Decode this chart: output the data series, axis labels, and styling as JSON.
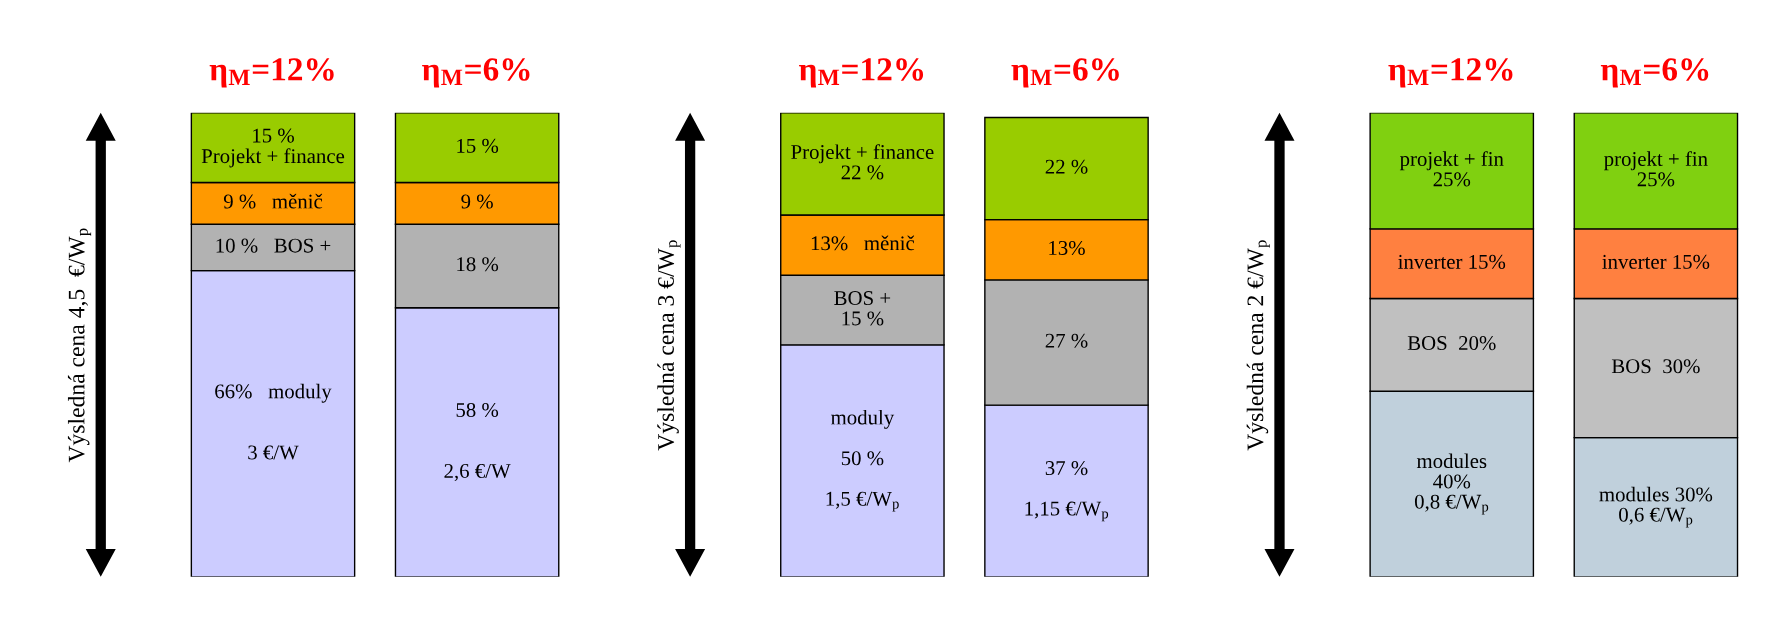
{
  "chart_data": [
    {
      "type": "bar",
      "stacked": true,
      "categories": [
        "η$_{M}$=12%",
        "η$_{M}$=6%"
      ],
      "ylabel": "Výsledná cena 4,5  €/W$_{p}$",
      "ylim": [
        0,
        100
      ],
      "tick_labels": "x",
      "series": [
        {
          "color": "#ccccff",
          "values": [
            66,
            58
          ],
          "value_labels": [
            "66%   moduly\n\n\n3 €/W",
            "58 %\n\n\n2,6 €/W"
          ]
        },
        {
          "color": "#b2b2b2",
          "values": [
            10,
            18
          ],
          "value_labels": [
            "10 %   BOS +",
            "18 %"
          ]
        },
        {
          "color": "#ff9900",
          "values": [
            9,
            9
          ],
          "value_labels": [
            "9 %   měnič",
            "9 %"
          ]
        },
        {
          "color": "#99cc00",
          "values": [
            15,
            15
          ],
          "value_labels": [
            "15 %\nProjekt + finance",
            "15 %"
          ]
        }
      ]
    },
    {
      "type": "bar",
      "stacked": true,
      "categories": [
        "η$_{M}$=12%",
        "η$_{M}$=6%"
      ],
      "ylabel": "Výsledná cena 3 €/W$_{p}$",
      "ylim": [
        0,
        100
      ],
      "tick_labels": "x",
      "series": [
        {
          "color": "#ccccff",
          "values": [
            50,
            37
          ],
          "value_labels": [
            "moduly\n\n50 %\n\n1,5 €/W$_{p}$",
            "37 %\n\n1,15 €/W$_{p}$"
          ]
        },
        {
          "color": "#b2b2b2",
          "values": [
            15,
            27
          ],
          "value_labels": [
            "BOS +\n15 %",
            "27 %"
          ]
        },
        {
          "color": "#ff9900",
          "values": [
            13,
            13
          ],
          "value_labels": [
            "13%   měnič",
            "13%"
          ]
        },
        {
          "color": "#99cc00",
          "values": [
            22,
            22
          ],
          "value_labels": [
            "Projekt + finance\n22 %",
            "22 %"
          ]
        }
      ]
    },
    {
      "type": "bar",
      "stacked": true,
      "categories": [
        "η$_{M}$=12%",
        "η$_{M}$=6%"
      ],
      "ylabel": "Výsledná cena 2 €/W$_{p}$",
      "ylim": [
        0,
        100
      ],
      "tick_labels": "x",
      "series": [
        {
          "color": "#c0d0dc",
          "values": [
            40,
            30
          ],
          "value_labels": [
            "modules\n40%\n0,8 €/W$_{p}$",
            "modules 30%\n0,6 €/W$_{p}$"
          ]
        },
        {
          "color": "#c0c0c0",
          "values": [
            20,
            30
          ],
          "value_labels": [
            "BOS  20%",
            "BOS  30%"
          ]
        },
        {
          "color": "#ff8040",
          "values": [
            15,
            15
          ],
          "value_labels": [
            "inverter 15%",
            "inverter 15%"
          ]
        },
        {
          "color": "#80d010",
          "values": [
            25,
            25
          ],
          "value_labels": [
            "projekt + fin\n25%",
            "projekt + fin\n25%"
          ]
        }
      ]
    }
  ]
}
